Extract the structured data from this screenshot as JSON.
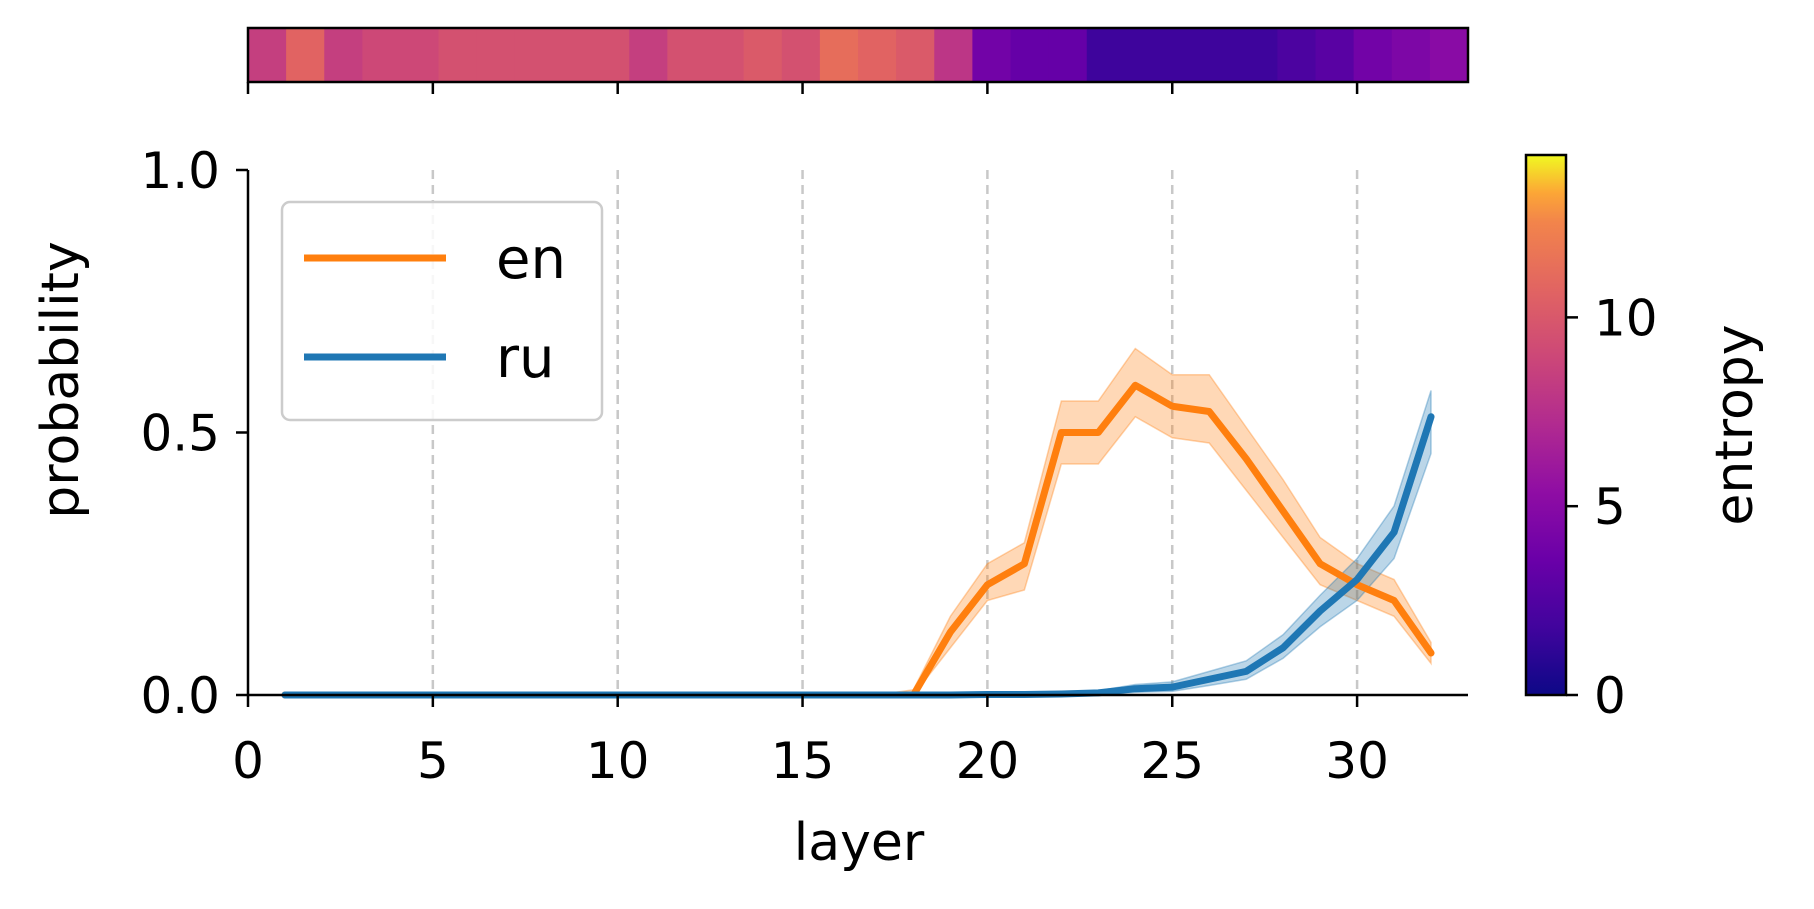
{
  "chart_data": {
    "type": "line",
    "xlabel": "layer",
    "ylabel": "probability",
    "xlim": [
      0,
      33
    ],
    "ylim": [
      0,
      1
    ],
    "x_ticks": [
      0,
      5,
      10,
      15,
      20,
      25,
      30
    ],
    "y_ticks": [
      0.0,
      0.5,
      1.0
    ],
    "y_tick_labels": [
      "0.0",
      "0.5",
      "1.0"
    ],
    "grid": "vertical dashed at x ticks 5-30",
    "legend_position": "upper-left",
    "x": [
      1,
      2,
      3,
      4,
      5,
      6,
      7,
      8,
      9,
      10,
      11,
      12,
      13,
      14,
      15,
      16,
      17,
      18,
      19,
      20,
      21,
      22,
      23,
      24,
      25,
      26,
      27,
      28,
      29,
      30,
      31,
      32
    ],
    "series": [
      {
        "name": "en",
        "color": "#ff7f0e",
        "values": [
          0,
          0,
          0,
          0,
          0,
          0,
          0,
          0,
          0,
          0,
          0,
          0,
          0,
          0,
          0,
          0,
          0,
          0.0,
          0.12,
          0.21,
          0.25,
          0.5,
          0.5,
          0.59,
          0.55,
          0.54,
          0.45,
          0.35,
          0.25,
          0.21,
          0.18,
          0.08
        ],
        "lower": [
          0,
          0,
          0,
          0,
          0,
          0,
          0,
          0,
          0,
          0,
          0,
          0,
          0,
          0,
          0,
          0,
          0,
          0.0,
          0.09,
          0.18,
          0.2,
          0.44,
          0.44,
          0.53,
          0.49,
          0.48,
          0.39,
          0.3,
          0.21,
          0.18,
          0.15,
          0.06
        ],
        "upper": [
          0,
          0,
          0,
          0,
          0,
          0,
          0,
          0,
          0,
          0,
          0,
          0,
          0,
          0,
          0,
          0,
          0,
          0.01,
          0.15,
          0.25,
          0.29,
          0.56,
          0.56,
          0.66,
          0.61,
          0.61,
          0.51,
          0.41,
          0.3,
          0.25,
          0.22,
          0.1
        ]
      },
      {
        "name": "ru",
        "color": "#1f77b4",
        "values": [
          0,
          0,
          0,
          0,
          0,
          0,
          0,
          0,
          0,
          0,
          0,
          0,
          0,
          0,
          0,
          0,
          0,
          0,
          0,
          0.001,
          0.001,
          0.002,
          0.004,
          0.012,
          0.015,
          0.03,
          0.045,
          0.09,
          0.16,
          0.22,
          0.31,
          0.53
        ],
        "lower": [
          0,
          0,
          0,
          0,
          0,
          0,
          0,
          0,
          0,
          0,
          0,
          0,
          0,
          0,
          0,
          0,
          0,
          0,
          0,
          0,
          0,
          0,
          0.001,
          0.005,
          0.007,
          0.018,
          0.03,
          0.07,
          0.13,
          0.18,
          0.26,
          0.46
        ],
        "upper": [
          0,
          0,
          0,
          0,
          0,
          0,
          0,
          0,
          0,
          0,
          0,
          0,
          0,
          0,
          0,
          0,
          0,
          0,
          0,
          0.002,
          0.002,
          0.004,
          0.008,
          0.02,
          0.025,
          0.045,
          0.065,
          0.115,
          0.19,
          0.26,
          0.36,
          0.58
        ]
      }
    ],
    "entropy_strip": {
      "values": [
        7.5,
        9.5,
        7.5,
        8.0,
        8.0,
        8.5,
        8.5,
        8.5,
        8.5,
        8.5,
        7.5,
        8.5,
        8.5,
        9.0,
        8.5,
        10.0,
        9.5,
        9.0,
        7.0,
        3.5,
        3.0,
        3.0,
        1.5,
        1.5,
        1.5,
        1.5,
        1.5,
        2.0,
        2.5,
        3.5,
        4.0,
        4.5
      ]
    },
    "colorbar": {
      "label": "entropy",
      "range": [
        0,
        14.3
      ],
      "ticks": [
        0,
        5,
        10
      ],
      "tick_labels": [
        "0",
        "5",
        "10"
      ],
      "colormap": "plasma"
    }
  }
}
